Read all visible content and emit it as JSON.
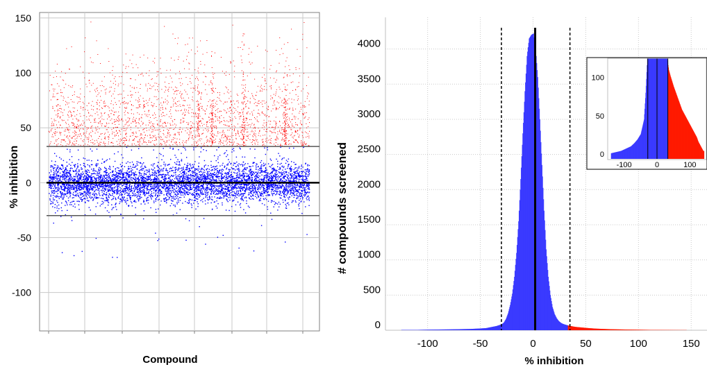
{
  "chart_data": [
    {
      "type": "scatter",
      "xlabel": "Compound",
      "ylabel": "% inhibition",
      "ylim": [
        -135,
        155
      ],
      "yticks": [
        150,
        100,
        50,
        0,
        -50,
        -100
      ],
      "grid": true,
      "x_ticks_labeled": false,
      "reference_lines": [
        {
          "y": 0,
          "style": "solid-thick",
          "color": "#000000"
        },
        {
          "y": 33,
          "style": "solid",
          "color": "#555555"
        },
        {
          "y": -30,
          "style": "solid",
          "color": "#555555"
        }
      ],
      "point_groups": [
        {
          "color": "#ff0000",
          "rule": "% inhibition above 33",
          "approx_range": [
            33,
            150
          ]
        },
        {
          "color": "#0000ff",
          "rule": "% inhibition below 33",
          "approx_range": [
            -125,
            33
          ]
        }
      ]
    },
    {
      "type": "bar",
      "subtype": "histogram",
      "xlabel": "% inhibition",
      "ylabel": "# compounds screened",
      "xlim": [
        -140,
        165
      ],
      "ylim": [
        0,
        4450
      ],
      "xticks": [
        -100,
        -50,
        0,
        50,
        100,
        150
      ],
      "yticks": [
        0,
        500,
        1000,
        1500,
        2000,
        2500,
        3000,
        3500,
        4000
      ],
      "grid": "dotted",
      "bin_centers": [
        -110,
        -100,
        -90,
        -80,
        -70,
        -60,
        -50,
        -45,
        -40,
        -35,
        -30,
        -28,
        -26,
        -24,
        -22,
        -20,
        -18,
        -16,
        -14,
        -12,
        -10,
        -8,
        -6,
        -4,
        -2,
        0,
        2,
        4,
        6,
        8,
        10,
        12,
        14,
        16,
        18,
        20,
        22,
        24,
        26,
        28,
        30,
        32,
        34,
        36,
        38,
        40,
        45,
        50,
        55,
        60,
        70,
        80,
        90,
        100,
        110,
        120,
        130,
        140
      ],
      "counts": [
        5,
        8,
        10,
        12,
        15,
        18,
        25,
        30,
        45,
        60,
        85,
        110,
        160,
        240,
        360,
        520,
        760,
        1100,
        1550,
        2150,
        2800,
        3400,
        3900,
        4150,
        4200,
        4220,
        4000,
        3600,
        3000,
        2350,
        1700,
        1150,
        760,
        500,
        330,
        230,
        170,
        130,
        105,
        90,
        80,
        72,
        64,
        58,
        52,
        47,
        40,
        33,
        27,
        22,
        16,
        12,
        9,
        7,
        5,
        4,
        3,
        2
      ],
      "color_rule": {
        "below_33": "#3a3aff",
        "above_33": "#ff1a00"
      },
      "reference_lines": [
        {
          "x": -30,
          "style": "dashed",
          "color": "#000000"
        },
        {
          "x": 2,
          "style": "solid-thick",
          "color": "#000000"
        },
        {
          "x": 35,
          "style": "dashed",
          "color": "#000000"
        }
      ]
    },
    {
      "type": "bar",
      "subtype": "histogram-inset",
      "xlim": [
        -150,
        150
      ],
      "ylim": [
        -10,
        125
      ],
      "xticks": [
        -100,
        0,
        100
      ],
      "yticks": [
        0,
        50,
        100
      ],
      "bin_centers": [
        -140,
        -130,
        -120,
        -110,
        -100,
        -90,
        -80,
        -70,
        -60,
        -50,
        -40,
        -35,
        -30,
        -25,
        -20,
        -15,
        -10,
        -5,
        0,
        5,
        10,
        15,
        20,
        25,
        30,
        35,
        40,
        45,
        50,
        55,
        60,
        65,
        70,
        75,
        80,
        85,
        90,
        95,
        100,
        105,
        110,
        115,
        120,
        125,
        130,
        135,
        140
      ],
      "counts": [
        1,
        2,
        3,
        4,
        6,
        8,
        10,
        14,
        19,
        26,
        45,
        80,
        125,
        125,
        125,
        125,
        125,
        125,
        125,
        125,
        125,
        125,
        125,
        125,
        125,
        110,
        102,
        95,
        88,
        82,
        76,
        70,
        64,
        58,
        54,
        50,
        46,
        42,
        38,
        34,
        30,
        26,
        22,
        16,
        12,
        8,
        4
      ],
      "color_rule": {
        "below_33": "#3a3aff",
        "above_33": "#ff1a00"
      },
      "reference_lines": [
        {
          "x": -28,
          "style": "solid",
          "color": "#000000"
        },
        {
          "x": 0,
          "style": "solid",
          "color": "#000000"
        },
        {
          "x": 33,
          "style": "solid",
          "color": "#000000"
        }
      ]
    }
  ]
}
